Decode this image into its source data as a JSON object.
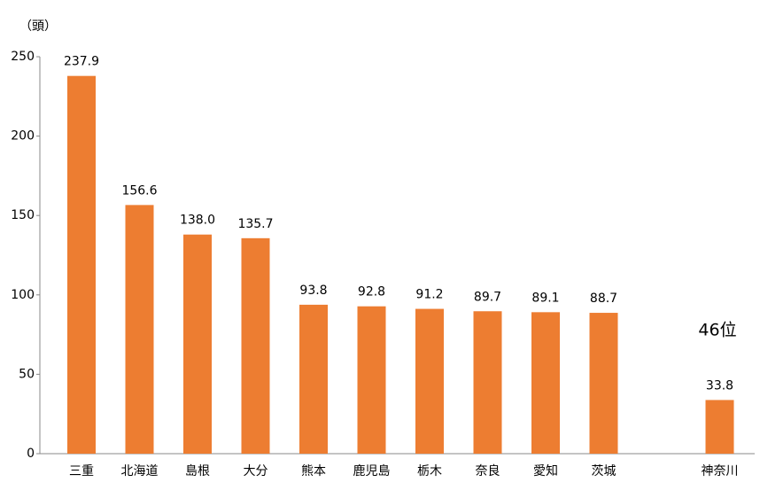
{
  "chart_data": {
    "type": "bar",
    "y_label": "（頭）",
    "annotation": "46位",
    "categories": [
      "三重",
      "北海道",
      "島根",
      "大分",
      "熊本",
      "鹿児島",
      "栃木",
      "奈良",
      "愛知",
      "茨城",
      null,
      "神奈川"
    ],
    "values": [
      237.9,
      156.6,
      138.0,
      135.7,
      93.8,
      92.8,
      91.2,
      89.7,
      89.1,
      88.7,
      null,
      33.8
    ],
    "value_labels": [
      "237.9",
      "156.6",
      "138.0",
      "135.7",
      "93.8",
      "92.8",
      "91.2",
      "89.7",
      "89.1",
      "88.7",
      null,
      "33.8"
    ],
    "color": "#ed7d31",
    "ylim": [
      0,
      250
    ],
    "yticks": [
      0,
      50,
      100,
      150,
      200,
      250
    ],
    "grid": false
  }
}
